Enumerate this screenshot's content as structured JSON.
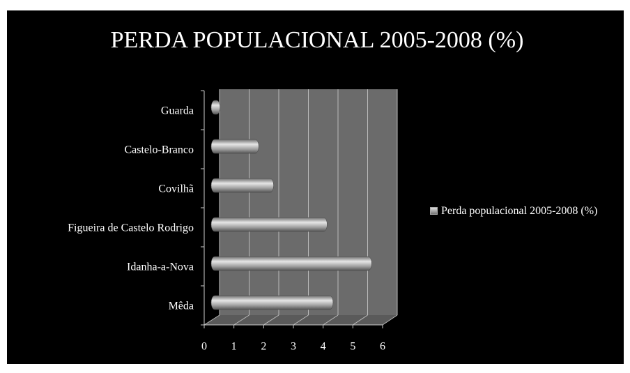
{
  "chart_data": {
    "type": "bar",
    "orientation": "horizontal",
    "title": "PERDA POPULACIONAL 2005-2008 (%)",
    "categories": [
      "Guarda",
      "Castelo-Branco",
      "Covilhã",
      "Figueira de Castelo Rodrigo",
      "Idanha-a-Nova",
      "Mêda"
    ],
    "series": [
      {
        "name": "Perda populacional 2005-2008 (%)",
        "color": "#9a9a9a",
        "values": [
          0.3,
          1.6,
          2.1,
          3.9,
          5.4,
          4.1
        ]
      }
    ],
    "xlim": [
      0,
      6
    ],
    "xticks": [
      0,
      1,
      2,
      3,
      4,
      5,
      6
    ],
    "grid": true,
    "legend": "right"
  }
}
